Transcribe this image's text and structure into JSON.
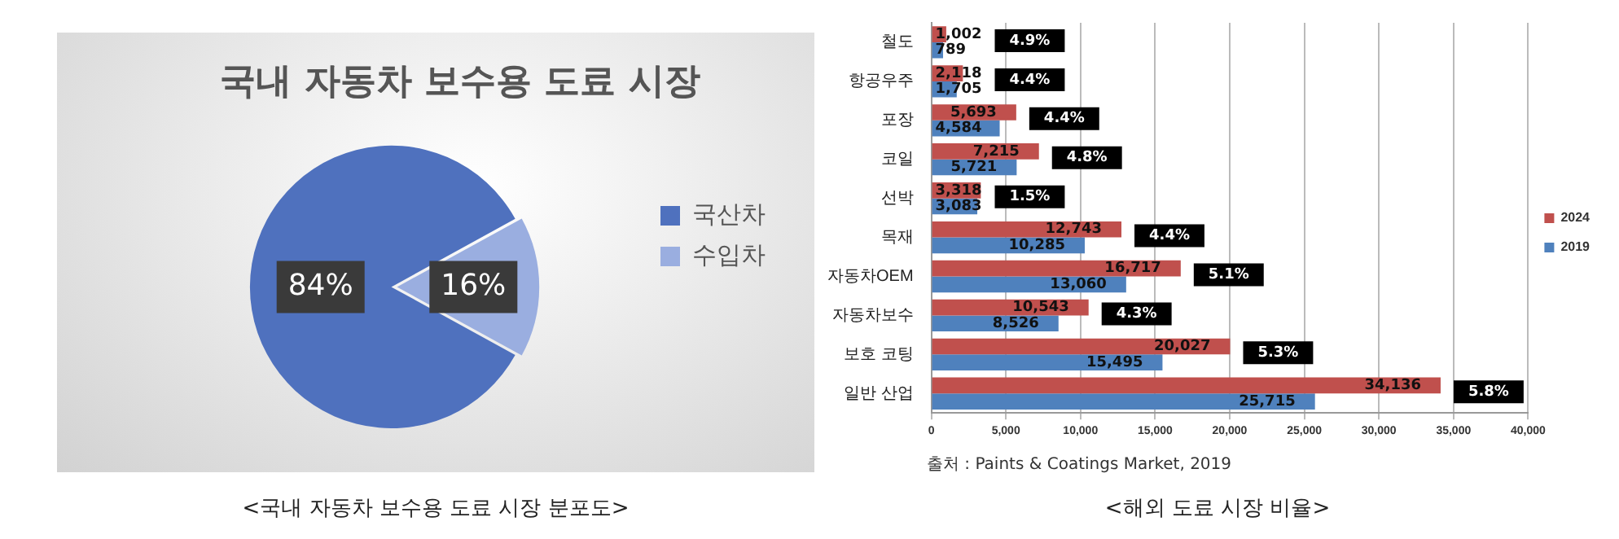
{
  "chart_data": [
    {
      "type": "pie",
      "title": "국내 자동차 보수용 도료 시장",
      "categories": [
        "국산차",
        "수입차"
      ],
      "values": [
        84,
        16
      ],
      "colors": [
        "#4f71be",
        "#9aaee0"
      ],
      "value_labels": [
        "84%",
        "16%"
      ],
      "legend": "right",
      "annotations": [
        "<국내 자동차 보수용 도료 시장 분포도>"
      ]
    },
    {
      "type": "bar",
      "orientation": "horizontal",
      "categories": [
        "철도",
        "항공우주",
        "포장",
        "코일",
        "선박",
        "목재",
        "자동차OEM",
        "자동차보수",
        "보호 코팅",
        "일반 산업"
      ],
      "series": [
        {
          "name": "2024",
          "color": "#c0504d",
          "values": [
            1002,
            2118,
            5693,
            7215,
            3318,
            12743,
            16717,
            10543,
            20027,
            34136
          ],
          "value_labels": [
            "1,002",
            "2,118",
            "5,693",
            "7,215",
            "3,318",
            "12,743",
            "16,717",
            "10,543",
            "20,027",
            "34,136"
          ]
        },
        {
          "name": "2019",
          "color": "#4f81bd",
          "values": [
            789,
            1705,
            4584,
            5721,
            3083,
            10285,
            13060,
            8526,
            15495,
            25715
          ],
          "value_labels": [
            "789",
            "1,705",
            "4,584",
            "5,721",
            "3,083",
            "10,285",
            "13,060",
            "8,526",
            "15,495",
            "25,715"
          ]
        }
      ],
      "xlim": [
        0,
        40000
      ],
      "xticks": [
        {
          "value": 0,
          "label": "0"
        },
        {
          "value": 5000,
          "label": "5,000"
        },
        {
          "value": 10000,
          "label": "10,000"
        },
        {
          "value": 15000,
          "label": "15,000"
        },
        {
          "value": 20000,
          "label": "20,000"
        },
        {
          "value": 25000,
          "label": "25,000"
        },
        {
          "value": 30000,
          "label": "30,000"
        },
        {
          "value": 35000,
          "label": "35,000"
        },
        {
          "value": 40000,
          "label": "40,000"
        }
      ],
      "grid": "x",
      "legend": "right",
      "annotations": [
        {
          "text": "4.9%",
          "y": "철도"
        },
        {
          "text": "4.4%",
          "y": "항공우주"
        },
        {
          "text": "4.4%",
          "y": "포장"
        },
        {
          "text": "4.8%",
          "y": "코일"
        },
        {
          "text": "1.5%",
          "y": "선박"
        },
        {
          "text": "4.4%",
          "y": "목재"
        },
        {
          "text": "5.1%",
          "y": "자동차OEM"
        },
        {
          "text": "4.3%",
          "y": "자동차보수"
        },
        {
          "text": "5.3%",
          "y": "보호 코팅"
        },
        {
          "text": "5.8%",
          "y": "일반 산업"
        },
        "출처 : Paints & Coatings Market, 2019",
        "<해외 도료 시장 비율>"
      ]
    }
  ]
}
